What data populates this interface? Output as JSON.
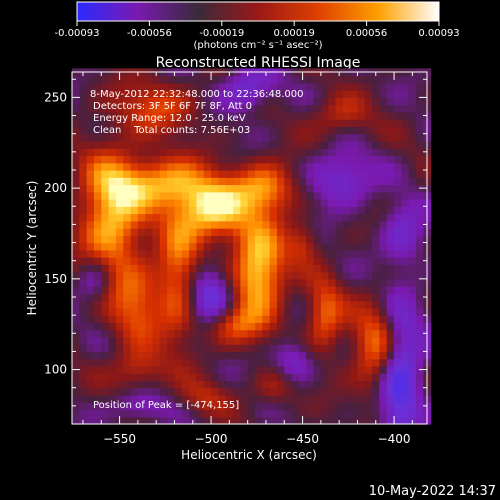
{
  "colorbar": {
    "ticks": [
      "-0.00093",
      "-0.00056",
      "-0.00019",
      "0.00019",
      "0.00056",
      "0.00093"
    ],
    "units": "(photons cm⁻² s⁻¹ asec⁻²)",
    "colors": [
      "#2a2aff",
      "#7a1ab0",
      "#3a2a3a",
      "#9a1818",
      "#e04000",
      "#ffa000",
      "#ffffff"
    ]
  },
  "chart_data": {
    "type": "heatmap",
    "title": "Reconstructed RHESSI Image",
    "xlabel": "Heliocentric X (arcsec)",
    "ylabel": "Heliocentric Y (arcsec)",
    "xlim": [
      -576,
      -382
    ],
    "ylim": [
      70,
      264
    ],
    "x_ticks": [
      -550,
      -500,
      -450,
      -400
    ],
    "y_ticks": [
      100,
      150,
      200,
      250
    ],
    "x_tick_labels": [
      "−550",
      "−500",
      "−450",
      "−400"
    ],
    "y_tick_labels": [
      "100",
      "150",
      "200",
      "250"
    ],
    "annotations": [
      "8-May-2012 22:32:48.000 to 22:36:48.000",
      "Detectors: 3F 5F 6F 7F 8F, Att 0",
      "Energy Range: 12.0 - 25.0 keV",
      "Clean    Total counts: 7.56E+03"
    ],
    "peak_label": "Position of Peak = [-474,155]",
    "peak": [
      -474,
      155
    ],
    "blobs": [
      {
        "x": -474,
        "y": 155,
        "sx": 10,
        "sy": 18,
        "a": 1.0
      },
      {
        "x": -500,
        "y": 188,
        "sx": 14,
        "sy": 12,
        "a": 0.95
      },
      {
        "x": -555,
        "y": 183,
        "sx": 12,
        "sy": 26,
        "a": 0.85
      },
      {
        "x": -528,
        "y": 203,
        "sx": 18,
        "sy": 10,
        "a": 0.75
      },
      {
        "x": -470,
        "y": 200,
        "sx": 12,
        "sy": 10,
        "a": 0.7
      },
      {
        "x": -518,
        "y": 150,
        "sx": 8,
        "sy": 24,
        "a": 0.6
      },
      {
        "x": -490,
        "y": 125,
        "sx": 12,
        "sy": 8,
        "a": 0.55
      },
      {
        "x": -540,
        "y": 135,
        "sx": 10,
        "sy": 16,
        "a": 0.5
      },
      {
        "x": -408,
        "y": 112,
        "sx": 10,
        "sy": 18,
        "a": 0.7
      },
      {
        "x": -438,
        "y": 130,
        "sx": 7,
        "sy": 14,
        "a": 0.6
      },
      {
        "x": -540,
        "y": 100,
        "sx": 10,
        "sy": 8,
        "a": 0.4
      },
      {
        "x": -505,
        "y": 85,
        "sx": 10,
        "sy": 7,
        "a": 0.3
      },
      {
        "x": -465,
        "y": 90,
        "sx": 8,
        "sy": 7,
        "a": 0.3
      },
      {
        "x": -530,
        "y": 245,
        "sx": 16,
        "sy": 10,
        "a": 0.45
      },
      {
        "x": -430,
        "y": 240,
        "sx": 12,
        "sy": 8,
        "a": 0.35
      },
      {
        "x": -450,
        "y": 170,
        "sx": 6,
        "sy": 8,
        "a": 0.35
      }
    ],
    "negative_blobs": [
      {
        "x": -397,
        "y": 100,
        "sx": 8,
        "sy": 26,
        "a": 0.9
      },
      {
        "x": -500,
        "y": 140,
        "sx": 9,
        "sy": 12,
        "a": 0.7
      },
      {
        "x": -430,
        "y": 205,
        "sx": 12,
        "sy": 10,
        "a": 0.5
      },
      {
        "x": -480,
        "y": 255,
        "sx": 10,
        "sy": 8,
        "a": 0.5
      },
      {
        "x": -563,
        "y": 150,
        "sx": 7,
        "sy": 10,
        "a": 0.45
      },
      {
        "x": -455,
        "y": 105,
        "sx": 8,
        "sy": 8,
        "a": 0.4
      },
      {
        "x": -395,
        "y": 175,
        "sx": 8,
        "sy": 12,
        "a": 0.4
      },
      {
        "x": -540,
        "y": 80,
        "sx": 10,
        "sy": 6,
        "a": 0.35
      }
    ]
  },
  "footer": {
    "timestamp": "10-May-2022 14:37"
  }
}
